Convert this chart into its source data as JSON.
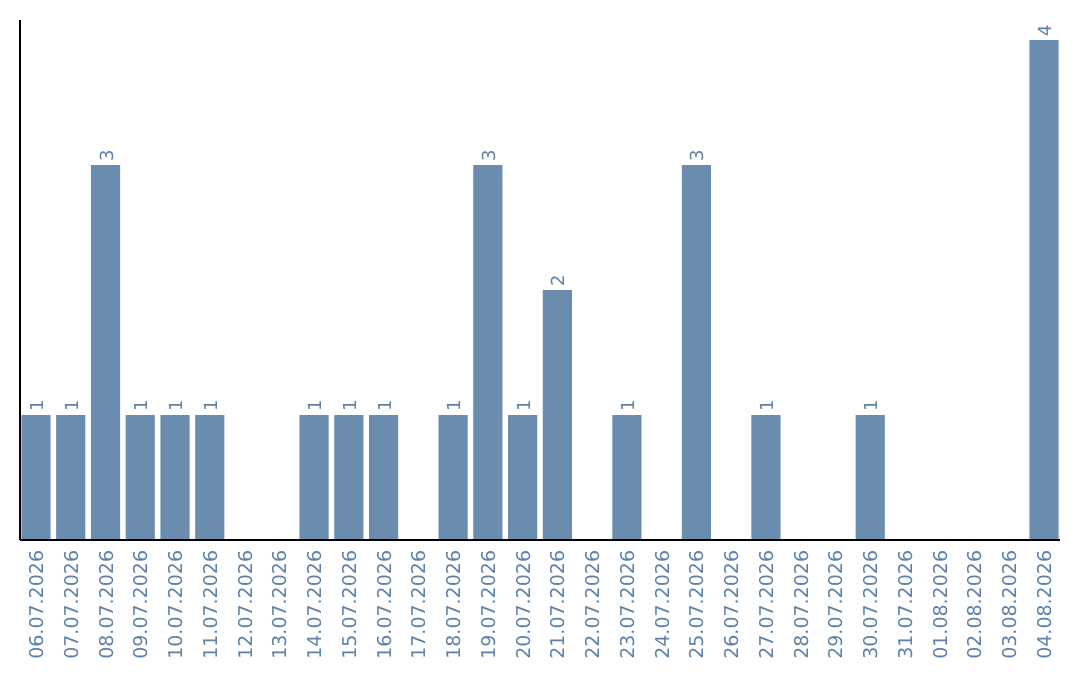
{
  "chart_data": {
    "type": "bar",
    "categories": [
      "06.07.2026",
      "07.07.2026",
      "08.07.2026",
      "09.07.2026",
      "10.07.2026",
      "11.07.2026",
      "12.07.2026",
      "13.07.2026",
      "14.07.2026",
      "15.07.2026",
      "16.07.2026",
      "17.07.2026",
      "18.07.2026",
      "19.07.2026",
      "20.07.2026",
      "21.07.2026",
      "22.07.2026",
      "23.07.2026",
      "24.07.2026",
      "25.07.2026",
      "26.07.2026",
      "27.07.2026",
      "28.07.2026",
      "29.07.2026",
      "30.07.2026",
      "31.07.2026",
      "01.08.2026",
      "02.08.2026",
      "03.08.2026",
      "04.08.2026"
    ],
    "values": [
      1,
      1,
      3,
      1,
      1,
      1,
      0,
      0,
      1,
      1,
      1,
      0,
      1,
      3,
      1,
      2,
      0,
      1,
      0,
      3,
      0,
      1,
      0,
      0,
      1,
      0,
      0,
      0,
      0,
      4
    ],
    "value_labels": [
      "1",
      "1",
      "3",
      "1",
      "1",
      "1",
      null,
      null,
      "1",
      "1",
      "1",
      null,
      "1",
      "3",
      "1",
      "2",
      null,
      "1",
      null,
      "3",
      null,
      "1",
      null,
      null,
      "1",
      null,
      null,
      null,
      null,
      "4"
    ],
    "color": "#6a8caf",
    "ylim": [
      0,
      4.16
    ],
    "relative": false
  }
}
